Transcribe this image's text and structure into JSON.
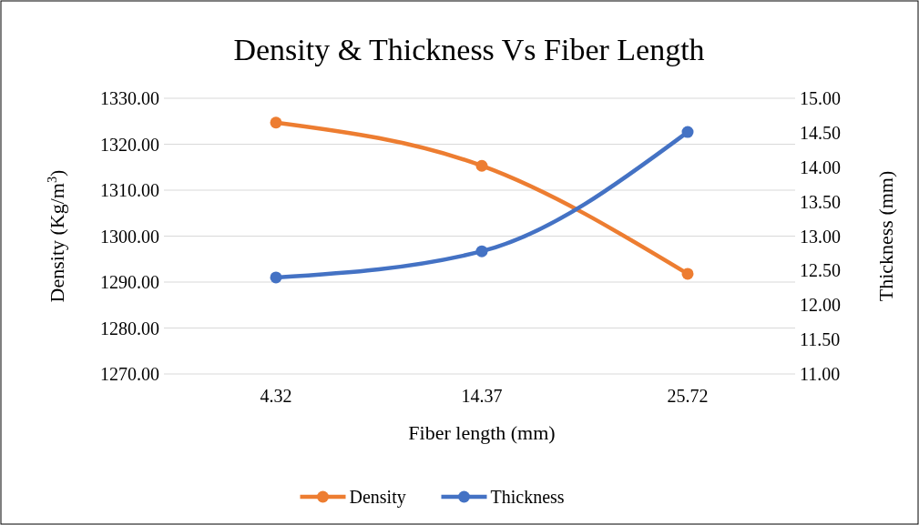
{
  "chart_data": {
    "type": "line",
    "title": "Density & Thickness Vs Fiber Length",
    "xlabel": "Fiber length (mm)",
    "ylabel": "Density (Kg/m$^{3}$)",
    "y2label": "Thickness (mm)",
    "categories": [
      "4.32",
      "14.37",
      "25.72"
    ],
    "series": [
      {
        "name": "Density",
        "color": "#ed7d31",
        "values": [
          1324.7,
          1315.3,
          1291.8
        ]
      },
      {
        "name": "Thickness",
        "color": "#4472c4",
        "values": [
          12.4,
          12.78,
          14.51
        ],
        "axis": "y2"
      }
    ],
    "ylim": [
      1270,
      1330
    ],
    "yticks": [
      {
        "value": 1270,
        "label": "1270.00"
      },
      {
        "value": 1280,
        "label": "1280.00"
      },
      {
        "value": 1290,
        "label": "1290.00"
      },
      {
        "value": 1300,
        "label": "1300.00"
      },
      {
        "value": 1310,
        "label": "1310.00"
      },
      {
        "value": 1320,
        "label": "1320.00"
      },
      {
        "value": 1330,
        "label": "1330.00"
      }
    ],
    "y2lim": [
      11,
      15
    ],
    "y2ticks": [
      {
        "value": 11,
        "label": "11.00"
      },
      {
        "value": 11.5,
        "label": "11.50"
      },
      {
        "value": 12,
        "label": "12.00"
      },
      {
        "value": 12.5,
        "label": "12.50"
      },
      {
        "value": 13,
        "label": "13.00"
      },
      {
        "value": 13.5,
        "label": "13.50"
      },
      {
        "value": 14,
        "label": "14.00"
      },
      {
        "value": 14.5,
        "label": "14.50"
      },
      {
        "value": 15,
        "label": "15.00"
      }
    ],
    "grid": "y",
    "legend": "bottom",
    "marker": "circle",
    "line_style": "solid"
  }
}
